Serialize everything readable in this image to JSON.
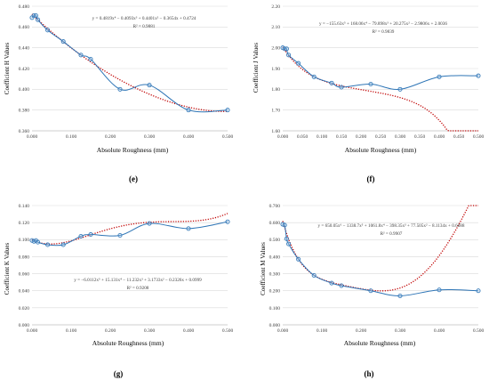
{
  "chart_data": [
    {
      "type": "scatter",
      "panel_label": "(e)",
      "xlabel": "Absolute Roughness (mm)",
      "ylabel": "Coefficient H Values",
      "xlim": [
        0,
        0.5
      ],
      "ylim": [
        0.36,
        0.48
      ],
      "xticks": [
        "0.000",
        "0.100",
        "0.200",
        "0.300",
        "0.400",
        "0.500"
      ],
      "yticks": [
        "0.360",
        "0.380",
        "0.400",
        "0.420",
        "0.440",
        "0.460",
        "0.480"
      ],
      "grid": "horizontal",
      "equation": "y = 0.4819x⁴ − 0.4093x³ + 0.4401x² − 0.3654x + 0.4724",
      "r2": "R² = 0.9881",
      "trend_coeffs": [
        0.4724,
        -0.3654,
        0.4401,
        -0.4093,
        0.4819
      ],
      "x": [
        0.0,
        0.005,
        0.01,
        0.015,
        0.04,
        0.08,
        0.125,
        0.15,
        0.225,
        0.3,
        0.4,
        0.5
      ],
      "y": [
        0.469,
        0.471,
        0.471,
        0.467,
        0.457,
        0.446,
        0.433,
        0.429,
        0.4,
        0.404,
        0.38,
        0.38
      ]
    },
    {
      "type": "scatter",
      "panel_label": "(f)",
      "xlabel": "Absolute Roughness (mm)",
      "ylabel": "Coefficient J Values",
      "xlim": [
        0,
        0.5
      ],
      "ylim": [
        1.6,
        2.2
      ],
      "xticks": [
        "0.000",
        "0.050",
        "0.100",
        "0.150",
        "0.200",
        "0.250",
        "0.300",
        "0.350",
        "0.400",
        "0.450",
        "0.500"
      ],
      "yticks": [
        "1.60",
        "1.70",
        "1.80",
        "1.90",
        "2.00",
        "2.10",
        "2.20"
      ],
      "grid": "horizontal",
      "equation": "y = −155.63x⁵ + 168.06x⁴ − 79.898x³ + 20.275x² − 2.9806x + 2.0036",
      "r2": "R² = 0.9839",
      "trend_coeffs": [
        2.0036,
        -2.9806,
        20.275,
        -79.898,
        168.06,
        -155.63
      ],
      "x": [
        0.0,
        0.005,
        0.01,
        0.015,
        0.04,
        0.08,
        0.125,
        0.15,
        0.225,
        0.3,
        0.4,
        0.5
      ],
      "y": [
        2.0,
        1.995,
        1.995,
        1.965,
        1.925,
        1.86,
        1.83,
        1.81,
        1.825,
        1.8,
        1.86,
        1.865
      ]
    },
    {
      "type": "scatter",
      "panel_label": "(g)",
      "xlabel": "Absolute Roughness (mm)",
      "ylabel": "Coefficient K Values",
      "xlim": [
        0,
        0.5
      ],
      "ylim": [
        0,
        0.14
      ],
      "xticks": [
        "0.000",
        "0.100",
        "0.200",
        "0.300",
        "0.400",
        "0.500"
      ],
      "yticks": [
        "0.000",
        "0.020",
        "0.040",
        "0.060",
        "0.080",
        "0.100",
        "0.120",
        "0.140"
      ],
      "grid": "horizontal",
      "equation": "y = −6.0112x⁵ + 15.131x⁴ − 11.232x³ + 3.1733x² − 0.2326x + 0.0999",
      "r2": "R² = 0.9208",
      "trend_coeffs": [
        0.0999,
        -0.2326,
        3.1733,
        -11.232,
        15.131,
        -6.0112
      ],
      "x": [
        0.0,
        0.005,
        0.01,
        0.015,
        0.04,
        0.08,
        0.125,
        0.15,
        0.225,
        0.3,
        0.4,
        0.5
      ],
      "y": [
        0.099,
        0.098,
        0.099,
        0.097,
        0.094,
        0.094,
        0.104,
        0.106,
        0.105,
        0.119,
        0.113,
        0.121
      ]
    },
    {
      "type": "scatter",
      "panel_label": "(h)",
      "xlabel": "Absolute Roughness (mm)",
      "ylabel": "Coefficient M Values",
      "xlim": [
        0,
        0.5
      ],
      "ylim": [
        0,
        0.7
      ],
      "xticks": [
        "0.000",
        "0.100",
        "0.200",
        "0.300",
        "0.400",
        "0.500"
      ],
      "yticks": [
        "0.000",
        "0.100",
        "0.200",
        "0.300",
        "0.400",
        "0.500",
        "0.600",
        "0.700"
      ],
      "grid": "horizontal",
      "equation": "y = 650.05x⁶ − 1338.7x⁵ + 1061.8x⁴ − 398.35x³ + 77.505x² − 8.1134x + 0.6088",
      "r2": "R² = 0.9907",
      "trend_coeffs": [
        0.6088,
        -8.1134,
        77.505,
        -398.35,
        1061.8,
        -1338.7,
        650.05
      ],
      "x": [
        0.0,
        0.005,
        0.01,
        0.015,
        0.04,
        0.08,
        0.125,
        0.15,
        0.225,
        0.3,
        0.4,
        0.5
      ],
      "y": [
        0.59,
        0.585,
        0.505,
        0.475,
        0.385,
        0.29,
        0.245,
        0.23,
        0.2,
        0.17,
        0.205,
        0.2
      ]
    }
  ]
}
